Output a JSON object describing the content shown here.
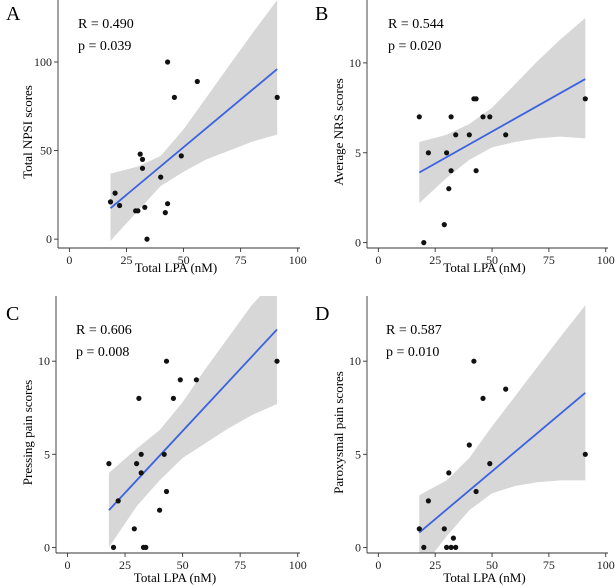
{
  "chart_data": [
    {
      "type": "scatter",
      "panel_label": "A",
      "r_text": "R = 0.490",
      "p_text": "p = 0.039",
      "xlabel": "Total LPA (nM)",
      "ylabel": "Total NPSI scores",
      "xlim": [
        -5,
        101
      ],
      "ylim": [
        -5,
        135
      ],
      "xticks": [
        0,
        25,
        50,
        75,
        100
      ],
      "yticks": [
        0,
        50,
        100
      ],
      "points": [
        [
          18,
          21
        ],
        [
          20,
          26
        ],
        [
          22,
          19
        ],
        [
          29,
          16
        ],
        [
          30,
          16
        ],
        [
          31,
          48
        ],
        [
          32,
          40
        ],
        [
          32,
          45
        ],
        [
          33,
          18
        ],
        [
          34,
          0
        ],
        [
          40,
          35
        ],
        [
          42,
          15
        ],
        [
          43,
          20
        ],
        [
          43,
          100
        ],
        [
          46,
          80
        ],
        [
          49,
          47
        ],
        [
          56,
          89
        ],
        [
          91,
          80
        ]
      ],
      "fit": [
        [
          18,
          17.5
        ],
        [
          91,
          96
        ]
      ],
      "band_upper": [
        [
          18,
          37
        ],
        [
          30,
          41
        ],
        [
          40,
          47
        ],
        [
          50,
          62
        ],
        [
          60,
          80
        ],
        [
          70,
          98
        ],
        [
          80,
          116
        ],
        [
          91,
          135
        ]
      ],
      "band_lower": [
        [
          18,
          -1
        ],
        [
          30,
          16
        ],
        [
          40,
          30
        ],
        [
          50,
          38
        ],
        [
          60,
          45
        ],
        [
          70,
          50
        ],
        [
          80,
          55
        ],
        [
          91,
          59
        ]
      ]
    },
    {
      "type": "scatter",
      "panel_label": "B",
      "r_text": "R = 0.544",
      "p_text": "p = 0.020",
      "xlabel": "Total LPA (nM)",
      "ylabel": "Average NRS scores",
      "xlim": [
        -5,
        101
      ],
      "ylim": [
        -0.3,
        13.5
      ],
      "xticks": [
        0,
        25,
        50,
        75,
        100
      ],
      "yticks": [
        0,
        5,
        10
      ],
      "points": [
        [
          18,
          7
        ],
        [
          20,
          0
        ],
        [
          22,
          5
        ],
        [
          29,
          1
        ],
        [
          30,
          5
        ],
        [
          31,
          3
        ],
        [
          32,
          4
        ],
        [
          32,
          7
        ],
        [
          34,
          6
        ],
        [
          40,
          6
        ],
        [
          42,
          8
        ],
        [
          43,
          8
        ],
        [
          43,
          4
        ],
        [
          46,
          7
        ],
        [
          49,
          7
        ],
        [
          56,
          6
        ],
        [
          91,
          8
        ]
      ],
      "fit": [
        [
          18,
          3.9
        ],
        [
          91,
          9.1
        ]
      ],
      "band_upper": [
        [
          18,
          5.6
        ],
        [
          30,
          6.0
        ],
        [
          40,
          6.6
        ],
        [
          50,
          7.5
        ],
        [
          60,
          8.8
        ],
        [
          70,
          10.1
        ],
        [
          80,
          11.3
        ],
        [
          91,
          12.5
        ]
      ],
      "band_lower": [
        [
          18,
          2.2
        ],
        [
          30,
          3.6
        ],
        [
          40,
          4.6
        ],
        [
          50,
          5.3
        ],
        [
          60,
          5.6
        ],
        [
          70,
          5.8
        ],
        [
          80,
          5.9
        ],
        [
          91,
          5.8
        ]
      ]
    },
    {
      "type": "scatter",
      "panel_label": "C",
      "r_text": "R = 0.606",
      "p_text": "p = 0.008",
      "xlabel": "Total LPA (nM)",
      "ylabel": "Pressing pain scores",
      "xlim": [
        -5,
        101
      ],
      "ylim": [
        -0.3,
        13.5
      ],
      "xticks": [
        0,
        25,
        50,
        75,
        100
      ],
      "yticks": [
        0,
        5,
        10
      ],
      "points": [
        [
          18,
          4.5
        ],
        [
          20,
          0
        ],
        [
          22,
          2.5
        ],
        [
          29,
          1
        ],
        [
          30,
          4.5
        ],
        [
          31,
          8
        ],
        [
          32,
          4
        ],
        [
          32,
          5
        ],
        [
          33,
          0
        ],
        [
          34,
          0
        ],
        [
          40,
          2
        ],
        [
          42,
          5
        ],
        [
          43,
          10
        ],
        [
          43,
          3
        ],
        [
          46,
          8
        ],
        [
          49,
          9
        ],
        [
          56,
          9
        ],
        [
          91,
          10
        ]
      ],
      "fit": [
        [
          18,
          2.0
        ],
        [
          91,
          11.7
        ]
      ],
      "band_upper": [
        [
          18,
          4.0
        ],
        [
          30,
          5.3
        ],
        [
          40,
          6.3
        ],
        [
          50,
          7.8
        ],
        [
          60,
          9.6
        ],
        [
          70,
          11.3
        ],
        [
          80,
          13.0
        ],
        [
          91,
          14.5
        ]
      ],
      "band_lower": [
        [
          18,
          0.0
        ],
        [
          30,
          2.2
        ],
        [
          40,
          3.6
        ],
        [
          50,
          4.8
        ],
        [
          60,
          5.6
        ],
        [
          70,
          6.4
        ],
        [
          80,
          7.1
        ],
        [
          91,
          7.7
        ]
      ]
    },
    {
      "type": "scatter",
      "panel_label": "D",
      "r_text": "R = 0.587",
      "p_text": "p = 0.010",
      "xlabel": "Total LPA (nM)",
      "ylabel": "Paroxysmal pain scores",
      "xlim": [
        -5,
        101
      ],
      "ylim": [
        -0.3,
        13.5
      ],
      "xticks": [
        0,
        25,
        50,
        75,
        100
      ],
      "yticks": [
        0,
        5,
        10
      ],
      "points": [
        [
          18,
          1
        ],
        [
          20,
          0
        ],
        [
          22,
          2.5
        ],
        [
          29,
          1
        ],
        [
          30,
          0
        ],
        [
          31,
          4
        ],
        [
          32,
          0
        ],
        [
          33,
          0.5
        ],
        [
          34,
          0
        ],
        [
          40,
          5.5
        ],
        [
          42,
          10
        ],
        [
          43,
          3
        ],
        [
          46,
          8
        ],
        [
          49,
          4.5
        ],
        [
          56,
          8.5
        ],
        [
          91,
          5
        ]
      ],
      "fit": [
        [
          18,
          0.8
        ],
        [
          91,
          8.3
        ]
      ],
      "band_upper": [
        [
          18,
          2.8
        ],
        [
          30,
          3.6
        ],
        [
          40,
          4.8
        ],
        [
          50,
          6.5
        ],
        [
          60,
          8.1
        ],
        [
          70,
          9.7
        ],
        [
          80,
          11.3
        ],
        [
          91,
          13.0
        ]
      ],
      "band_lower": [
        [
          18,
          -1.3
        ],
        [
          30,
          0.6
        ],
        [
          40,
          2.0
        ],
        [
          50,
          2.9
        ],
        [
          60,
          3.3
        ],
        [
          70,
          3.5
        ],
        [
          80,
          3.6
        ],
        [
          91,
          3.6
        ]
      ]
    }
  ]
}
